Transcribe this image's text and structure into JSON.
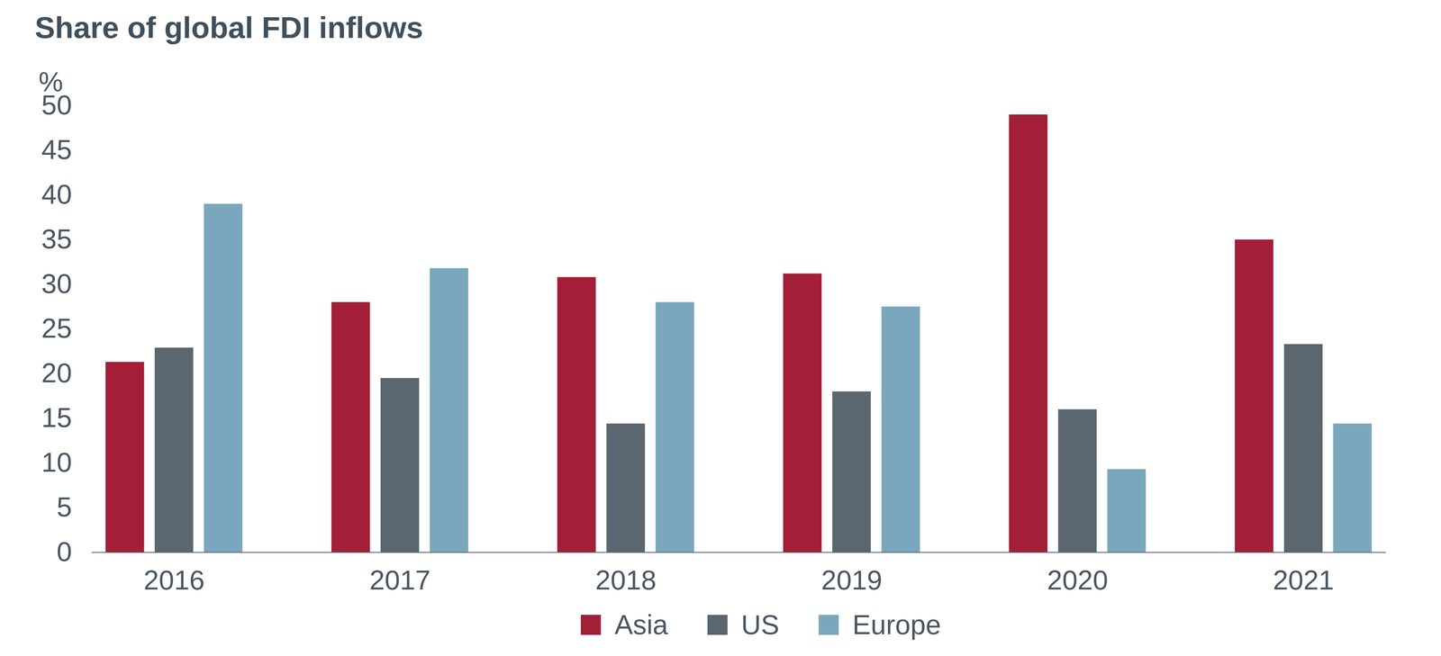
{
  "chart_data": {
    "type": "bar",
    "title": "Share of global FDI inflows",
    "y_label": "%",
    "categories": [
      "2016",
      "2017",
      "2018",
      "2019",
      "2020",
      "2021"
    ],
    "series": [
      {
        "name": "Asia",
        "color": "#a31e37",
        "values": [
          21.3,
          28,
          30.8,
          31.2,
          49,
          35
        ]
      },
      {
        "name": "US",
        "color": "#5a6670",
        "values": [
          22.9,
          19.5,
          14.4,
          18,
          16,
          23.3
        ]
      },
      {
        "name": "Europe",
        "color": "#7aa7bd",
        "values": [
          39,
          31.8,
          28,
          27.5,
          9.3,
          14.4
        ]
      }
    ],
    "ylim": [
      0,
      50
    ],
    "yticks": [
      0,
      5,
      10,
      15,
      20,
      25,
      30,
      35,
      40,
      45,
      50
    ],
    "grid": false,
    "legend": "bottom"
  }
}
